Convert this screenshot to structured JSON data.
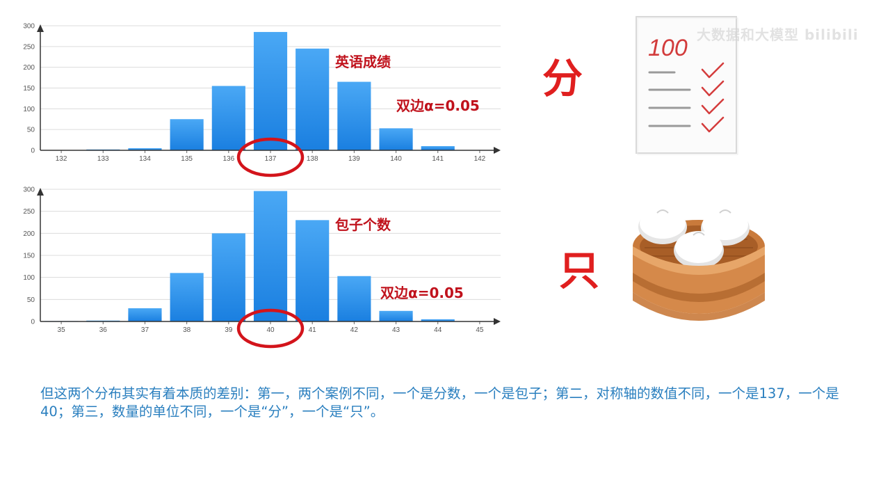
{
  "charts": [
    {
      "type": "bar",
      "categories": [
        "132",
        "133",
        "134",
        "135",
        "136",
        "137",
        "138",
        "139",
        "140",
        "141",
        "142"
      ],
      "values": [
        0,
        2,
        5,
        75,
        155,
        285,
        245,
        165,
        53,
        10,
        0
      ],
      "y_ticks": [
        "300",
        "250",
        "200",
        "150",
        "100",
        "50",
        "0"
      ],
      "ylim": [
        0,
        300
      ],
      "annotation_label": "英语成绩",
      "alpha_label": "双边α=0.05",
      "highlighted_category": "137"
    },
    {
      "type": "bar",
      "categories": [
        "35",
        "36",
        "37",
        "38",
        "39",
        "40",
        "41",
        "42",
        "43",
        "44",
        "45"
      ],
      "values": [
        1,
        2,
        30,
        110,
        200,
        296,
        230,
        103,
        24,
        5,
        0
      ],
      "y_ticks": [
        "300",
        "250",
        "200",
        "150",
        "100",
        "50",
        "0"
      ],
      "ylim": [
        0,
        300
      ],
      "annotation_label": "包子个数",
      "alpha_label": "双边α=0.05",
      "highlighted_category": "40"
    }
  ],
  "unit_labels": {
    "score_unit": "分",
    "bun_unit": "只"
  },
  "score_sheet": {
    "score": "100"
  },
  "caption": "但这两个分布其实有着本质的差别：第一，两个案例不同，一个是分数，一个是包子；第二，对称轴的数值不同，一个是137，一个是40；第三，数量的单位不同，一个是“分”，一个是“只”。",
  "watermark": "大数据和大模型 bilibili",
  "colors": {
    "bar_top": "#4aa8f5",
    "bar_bottom": "#1a7fe0",
    "highlight_ring": "#d3141b",
    "annotation": "#c0121c",
    "unit_char": "#e01f1f",
    "caption": "#2a7fbf"
  },
  "chart_data": [
    {
      "type": "bar",
      "categories": [
        "132",
        "133",
        "134",
        "135",
        "136",
        "137",
        "138",
        "139",
        "140",
        "141",
        "142"
      ],
      "values": [
        0,
        2,
        5,
        75,
        155,
        285,
        245,
        165,
        53,
        10,
        0
      ],
      "ylim": [
        0,
        300
      ]
    },
    {
      "type": "bar",
      "categories": [
        "35",
        "36",
        "37",
        "38",
        "39",
        "40",
        "41",
        "42",
        "43",
        "44",
        "45"
      ],
      "values": [
        1,
        2,
        30,
        110,
        200,
        296,
        230,
        103,
        24,
        5,
        0
      ],
      "ylim": [
        0,
        300
      ]
    }
  ]
}
